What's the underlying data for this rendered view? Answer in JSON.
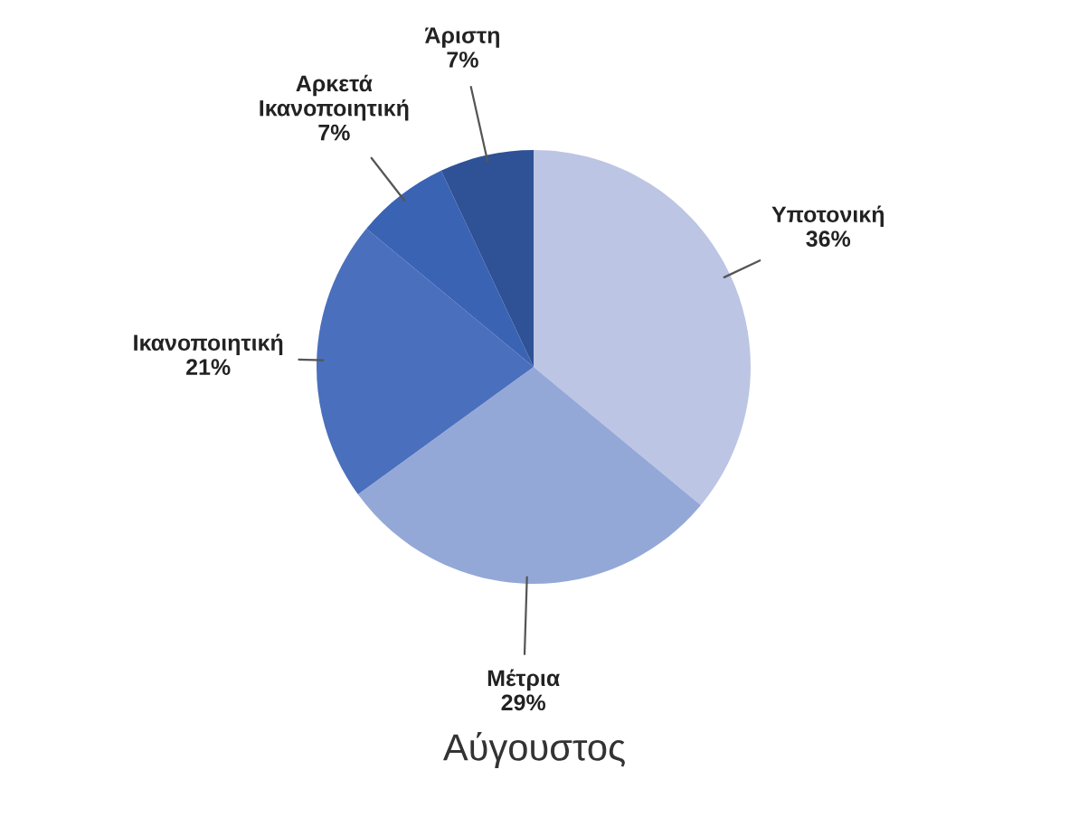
{
  "chart_data": {
    "type": "pie",
    "title": "Αύγουστος",
    "categories": [
      "Υποτονική",
      "Μέτρια",
      "Ικανοποιητική",
      "Αρκετά Ικανοποιητική",
      "Άριστη"
    ],
    "values": [
      36,
      29,
      21,
      7,
      7
    ],
    "value_labels": [
      "36%",
      "29%",
      "21%",
      "7%",
      "7%"
    ],
    "colors": [
      "#bcc5e3",
      "#94a8d8",
      "#4a6fbd",
      "#3b63b3",
      "#2f5196"
    ]
  }
}
